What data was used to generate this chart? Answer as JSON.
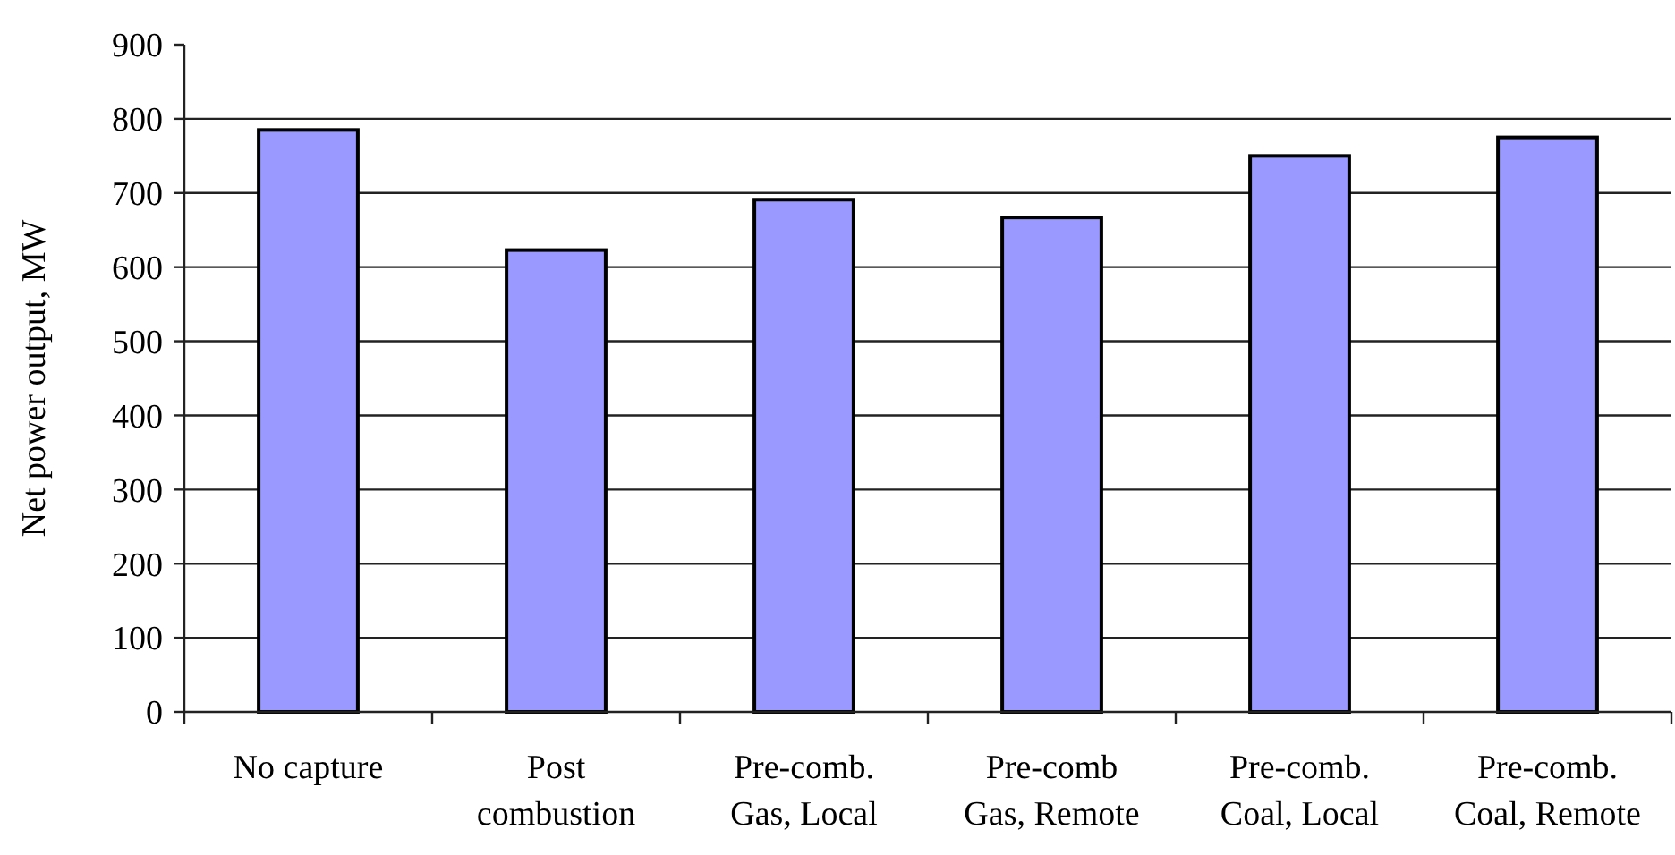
{
  "chart_data": {
    "type": "bar",
    "ylabel": "Net power output, MW",
    "categories": [
      "No capture",
      "Post\ncombustion",
      "Pre-comb.\nGas, Local",
      "Pre-comb\nGas, Remote",
      "Pre-comb.\nCoal, Local",
      "Pre-comb.\nCoal, Remote"
    ],
    "values": [
      785,
      623,
      691,
      667,
      750,
      775
    ],
    "color": "#9999ff",
    "ylim": [
      0,
      900
    ],
    "yticks": [
      0,
      100,
      200,
      300,
      400,
      500,
      600,
      700,
      800,
      900
    ],
    "grid": "y"
  }
}
